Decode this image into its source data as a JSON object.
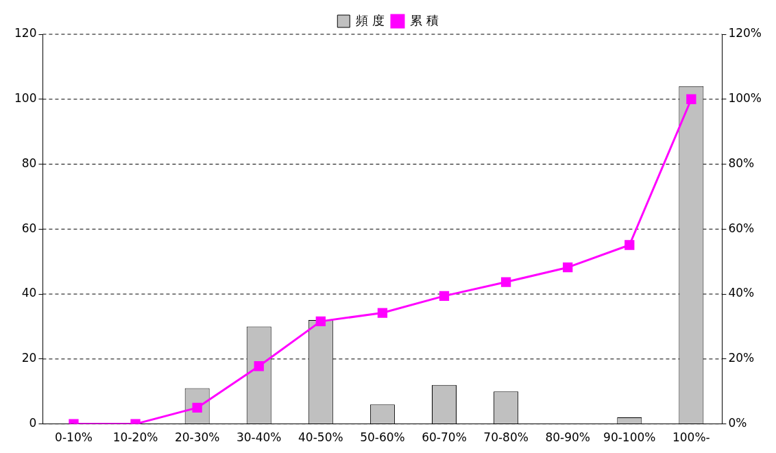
{
  "chart_data": {
    "type": "bar",
    "categories": [
      "0-10%",
      "10-20%",
      "20-30%",
      "30-40%",
      "40-50%",
      "50-60%",
      "60-70%",
      "70-80%",
      "80-90%",
      "90-100%",
      "100%-"
    ],
    "series": [
      {
        "name": "頻 度",
        "color": "#c0c0c0",
        "values": [
          0,
          0,
          11,
          30,
          32,
          6,
          12,
          10,
          0,
          2,
          104
        ]
      },
      {
        "name": "累 積",
        "type": "line",
        "axis": "y2",
        "color": "#ff00ff",
        "marker": "square",
        "values": [
          0,
          0,
          5,
          17.8,
          31.6,
          34.2,
          39.4,
          43.7,
          48.2,
          55.1,
          100
        ]
      }
    ],
    "ylim": [
      0,
      120
    ],
    "yticks": [
      0,
      20,
      40,
      60,
      80,
      100,
      120
    ],
    "y2lim": [
      0,
      120
    ],
    "y2ticks": [
      {
        "value": 0,
        "label": "0%"
      },
      {
        "value": 20,
        "label": "20%"
      },
      {
        "value": 40,
        "label": "40%"
      },
      {
        "value": 60,
        "label": "60%"
      },
      {
        "value": 80,
        "label": "80%"
      },
      {
        "value": 100,
        "label": "100%"
      },
      {
        "value": 120,
        "label": "120%"
      }
    ],
    "grid": "y",
    "legend": "top"
  }
}
